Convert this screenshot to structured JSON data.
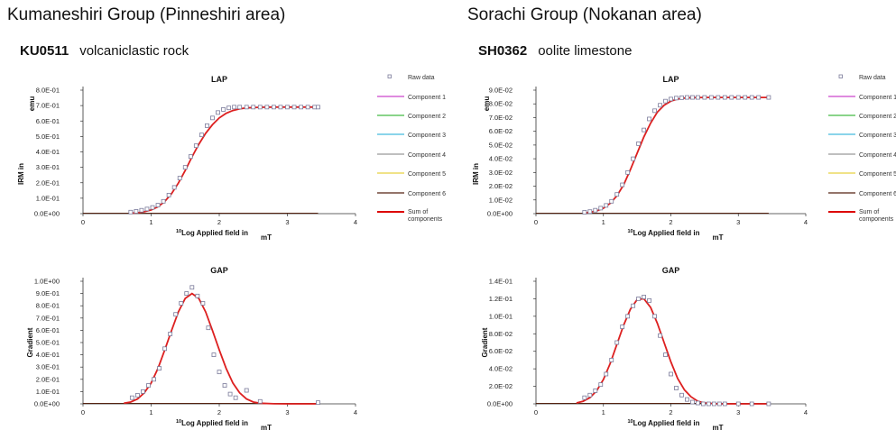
{
  "left": {
    "group_title": "Kumaneshiri Group (Pinneshiri area)",
    "sample_id": "KU0511",
    "rock_type": "volcaniclastic rock"
  },
  "right": {
    "group_title": "Sorachi Group (Nokanan area)",
    "sample_id": "SH0362",
    "rock_type": "oolite limestone"
  },
  "chart_data": [
    {
      "id": "left-lap",
      "type": "scatter",
      "title": "LAP",
      "ylabel_main": "IRM in",
      "ylabel_unit": "emu",
      "xlabel_main": "Log Applied field in",
      "xlabel_sup": "10",
      "xlabel_unit": "mT",
      "xlim": [
        0,
        4
      ],
      "ylim": [
        0,
        0.8
      ],
      "x_ticks": [
        "0",
        "1",
        "2",
        "3",
        "4"
      ],
      "y_ticks": [
        "0.0E+00",
        "1.0E-01",
        "2.0E-01",
        "3.0E-01",
        "4.0E-01",
        "5.0E-01",
        "6.0E-01",
        "7.0E-01",
        "8.0E-01"
      ],
      "raw_x": [
        0.7,
        0.78,
        0.86,
        0.94,
        1.02,
        1.1,
        1.18,
        1.26,
        1.34,
        1.42,
        1.5,
        1.58,
        1.66,
        1.74,
        1.82,
        1.9,
        1.98,
        2.06,
        2.14,
        2.22,
        2.3,
        2.4,
        2.5,
        2.6,
        2.7,
        2.8,
        2.9,
        3.0,
        3.1,
        3.2,
        3.3,
        3.4,
        3.45
      ],
      "raw_y": [
        0.01,
        0.015,
        0.022,
        0.03,
        0.04,
        0.055,
        0.08,
        0.12,
        0.17,
        0.23,
        0.3,
        0.37,
        0.44,
        0.51,
        0.57,
        0.62,
        0.655,
        0.675,
        0.685,
        0.69,
        0.69,
        0.69,
        0.69,
        0.69,
        0.69,
        0.69,
        0.69,
        0.69,
        0.69,
        0.69,
        0.69,
        0.69,
        0.69
      ],
      "fit_x": [
        0.7,
        0.8,
        0.9,
        1.0,
        1.1,
        1.2,
        1.3,
        1.4,
        1.5,
        1.6,
        1.7,
        1.8,
        1.9,
        2.0,
        2.1,
        2.2,
        2.3,
        2.4,
        2.6,
        2.8,
        3.0,
        3.2,
        3.45
      ],
      "fit_y": [
        0.003,
        0.006,
        0.012,
        0.024,
        0.045,
        0.079,
        0.13,
        0.198,
        0.28,
        0.368,
        0.449,
        0.52,
        0.576,
        0.62,
        0.65,
        0.668,
        0.679,
        0.685,
        0.689,
        0.69,
        0.69,
        0.69,
        0.69
      ]
    },
    {
      "id": "left-gap",
      "type": "scatter",
      "title": "GAP",
      "ylabel_main": "Gradient",
      "xlabel_main": "Log Applied field in",
      "xlabel_sup": "10",
      "xlabel_unit": "mT",
      "xlim": [
        0,
        4
      ],
      "ylim": [
        0,
        1.0
      ],
      "x_ticks": [
        "0",
        "1",
        "2",
        "3",
        "4"
      ],
      "y_ticks": [
        "0.0E+00",
        "1.0E-01",
        "2.0E-01",
        "3.0E-01",
        "4.0E-01",
        "5.0E-01",
        "6.0E-01",
        "7.0E-01",
        "8.0E-01",
        "9.0E-01",
        "1.0E+00"
      ],
      "raw_x": [
        0.72,
        0.8,
        0.88,
        0.96,
        1.04,
        1.12,
        1.2,
        1.28,
        1.36,
        1.44,
        1.52,
        1.6,
        1.68,
        1.76,
        1.84,
        1.92,
        2.0,
        2.08,
        2.16,
        2.24,
        2.4,
        2.6,
        3.45
      ],
      "raw_y": [
        0.05,
        0.07,
        0.1,
        0.15,
        0.2,
        0.29,
        0.45,
        0.57,
        0.73,
        0.82,
        0.9,
        0.95,
        0.88,
        0.82,
        0.62,
        0.4,
        0.26,
        0.15,
        0.08,
        0.05,
        0.11,
        0.02,
        0.01
      ],
      "fit_x": [
        0.6,
        0.7,
        0.8,
        0.9,
        1.0,
        1.1,
        1.2,
        1.3,
        1.4,
        1.5,
        1.6,
        1.7,
        1.8,
        1.9,
        2.0,
        2.1,
        2.2,
        2.3,
        2.4,
        2.5,
        2.6,
        2.8,
        3.0,
        3.45
      ],
      "fit_y": [
        0.005,
        0.015,
        0.04,
        0.09,
        0.17,
        0.29,
        0.44,
        0.6,
        0.75,
        0.86,
        0.9,
        0.86,
        0.75,
        0.6,
        0.44,
        0.29,
        0.17,
        0.09,
        0.04,
        0.015,
        0.005,
        0.001,
        0.0,
        0.0
      ]
    },
    {
      "id": "right-lap",
      "type": "scatter",
      "title": "LAP",
      "ylabel_main": "IRM in",
      "ylabel_unit": "emu",
      "xlabel_main": "Log Applied field in",
      "xlabel_sup": "10",
      "xlabel_unit": "mT",
      "xlim": [
        0,
        4
      ],
      "ylim": [
        0,
        0.09
      ],
      "x_ticks": [
        "0",
        "1",
        "2",
        "3",
        "4"
      ],
      "y_ticks": [
        "0.0E+00",
        "1.0E-02",
        "2.0E-02",
        "3.0E-02",
        "4.0E-02",
        "5.0E-02",
        "6.0E-02",
        "7.0E-02",
        "8.0E-02",
        "9.0E-02"
      ],
      "raw_x": [
        0.72,
        0.8,
        0.88,
        0.96,
        1.04,
        1.12,
        1.2,
        1.28,
        1.36,
        1.44,
        1.52,
        1.6,
        1.68,
        1.76,
        1.84,
        1.92,
        2.0,
        2.08,
        2.16,
        2.24,
        2.32,
        2.4,
        2.5,
        2.6,
        2.7,
        2.8,
        2.9,
        3.0,
        3.1,
        3.2,
        3.3,
        3.45
      ],
      "raw_y": [
        0.001,
        0.0015,
        0.0025,
        0.004,
        0.006,
        0.009,
        0.014,
        0.021,
        0.03,
        0.04,
        0.051,
        0.061,
        0.069,
        0.075,
        0.079,
        0.082,
        0.0835,
        0.0842,
        0.0845,
        0.0847,
        0.0847,
        0.0847,
        0.0847,
        0.0847,
        0.0847,
        0.0847,
        0.0847,
        0.0847,
        0.0847,
        0.0847,
        0.0847,
        0.0847
      ],
      "fit_x": [
        0.7,
        0.8,
        0.9,
        1.0,
        1.1,
        1.2,
        1.3,
        1.4,
        1.5,
        1.6,
        1.7,
        1.8,
        1.9,
        2.0,
        2.1,
        2.2,
        2.3,
        2.5,
        2.7,
        3.0,
        3.45
      ],
      "fit_y": [
        0.0005,
        0.001,
        0.002,
        0.004,
        0.0075,
        0.013,
        0.021,
        0.032,
        0.044,
        0.056,
        0.066,
        0.074,
        0.079,
        0.082,
        0.0835,
        0.0842,
        0.0845,
        0.0847,
        0.0847,
        0.0847,
        0.0847
      ]
    },
    {
      "id": "right-gap",
      "type": "scatter",
      "title": "GAP",
      "ylabel_main": "Gradient",
      "xlabel_main": "Log Applied field in",
      "xlabel_sup": "10",
      "xlabel_unit": "mT",
      "xlim": [
        0,
        4
      ],
      "ylim": [
        0,
        0.14
      ],
      "x_ticks": [
        "0",
        "1",
        "2",
        "3",
        "4"
      ],
      "y_ticks": [
        "0.0E+00",
        "2.0E-02",
        "4.0E-02",
        "6.0E-02",
        "8.0E-02",
        "1.0E-01",
        "1.2E-01",
        "1.4E-01"
      ],
      "raw_x": [
        0.72,
        0.8,
        0.88,
        0.96,
        1.04,
        1.12,
        1.2,
        1.28,
        1.36,
        1.44,
        1.52,
        1.6,
        1.68,
        1.76,
        1.84,
        1.92,
        2.0,
        2.08,
        2.16,
        2.24,
        2.32,
        2.4,
        2.48,
        2.56,
        2.64,
        2.72,
        2.8,
        3.0,
        3.2,
        3.45
      ],
      "raw_y": [
        0.007,
        0.01,
        0.015,
        0.022,
        0.034,
        0.05,
        0.07,
        0.088,
        0.1,
        0.112,
        0.12,
        0.122,
        0.118,
        0.1,
        0.078,
        0.056,
        0.034,
        0.018,
        0.01,
        0.005,
        0.002,
        0.001,
        0.0,
        0.0,
        0.0,
        0.0,
        0.0,
        0.0,
        0.0,
        0.0
      ],
      "fit_x": [
        0.6,
        0.7,
        0.8,
        0.9,
        1.0,
        1.1,
        1.2,
        1.3,
        1.4,
        1.5,
        1.6,
        1.7,
        1.8,
        1.9,
        2.0,
        2.1,
        2.2,
        2.3,
        2.4,
        2.5,
        2.7,
        3.0,
        3.45
      ],
      "fit_y": [
        0.001,
        0.003,
        0.007,
        0.015,
        0.028,
        0.046,
        0.068,
        0.09,
        0.108,
        0.119,
        0.12,
        0.11,
        0.092,
        0.07,
        0.048,
        0.029,
        0.016,
        0.008,
        0.003,
        0.001,
        0.0,
        0.0,
        0.0
      ]
    }
  ],
  "legend": [
    {
      "label": "Raw data",
      "kind": "marker",
      "color": "#888888"
    },
    {
      "label": "Component 1",
      "kind": "line",
      "color": "#cc44cc"
    },
    {
      "label": "Component 2",
      "kind": "line",
      "color": "#44bb44"
    },
    {
      "label": "Component 3",
      "kind": "line",
      "color": "#44bbdd"
    },
    {
      "label": "Component 4",
      "kind": "line",
      "color": "#999999"
    },
    {
      "label": "Component 5",
      "kind": "line",
      "color": "#e8d040"
    },
    {
      "label": "Component 6",
      "kind": "line",
      "color": "#552211"
    },
    {
      "label": "Sum of components",
      "kind": "line",
      "color": "#dd0000"
    }
  ],
  "colors": {
    "sum_line": "#dd2020",
    "raw_marker": "#7a7a9a",
    "axis": "#333333"
  }
}
